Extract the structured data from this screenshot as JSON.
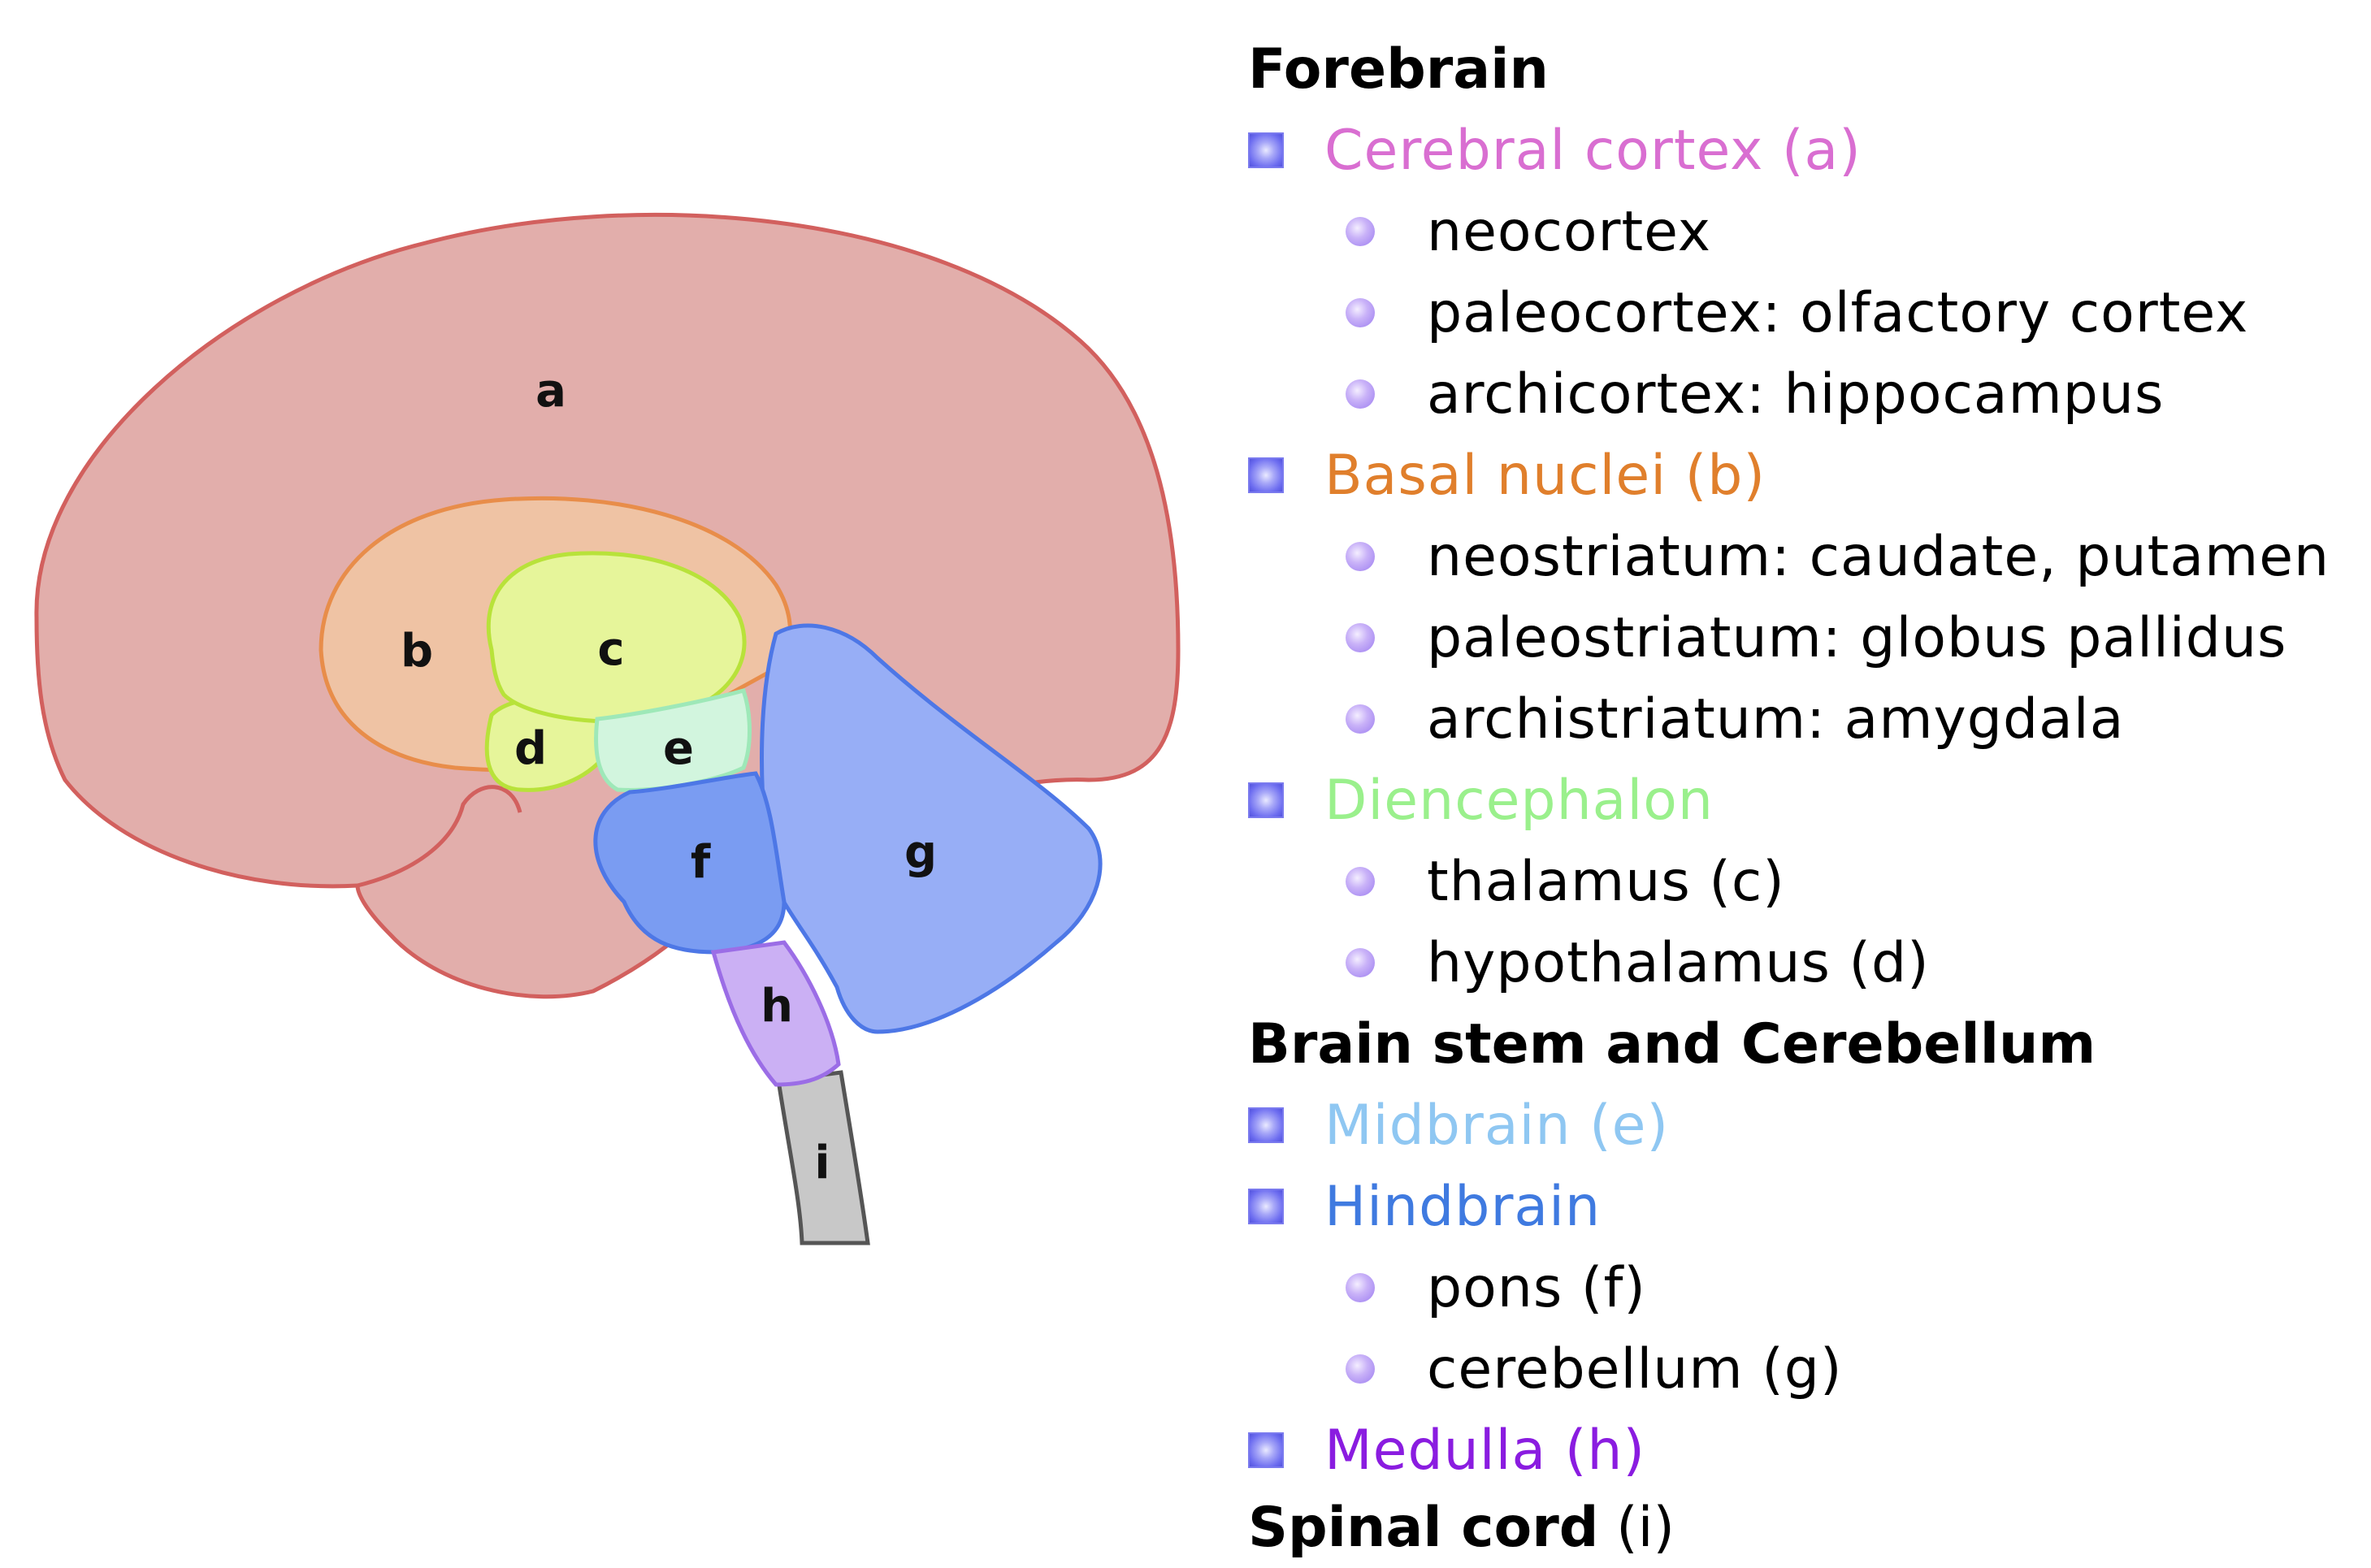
{
  "diagram": {
    "regions": [
      {
        "letter": "a",
        "color": "#e2aeab"
      },
      {
        "letter": "b",
        "color": "#efc3a4"
      },
      {
        "letter": "c",
        "color": "#e6f59a"
      },
      {
        "letter": "d",
        "color": "#e6f59a"
      },
      {
        "letter": "e",
        "color": "#d2f5de"
      },
      {
        "letter": "f",
        "color": "#7a9cf2"
      },
      {
        "letter": "g",
        "color": "#97aef6"
      },
      {
        "letter": "h",
        "color": "#cbb0f4"
      },
      {
        "letter": "i",
        "color": "#c8c8c8"
      }
    ]
  },
  "legend": {
    "forebrain": {
      "heading": "Forebrain"
    },
    "cerebral_cortex": {
      "label": "Cerebral cortex (a)",
      "color": "#d96ed1"
    },
    "cortex_items": [
      "neocortex",
      "paleocortex: olfactory cortex",
      "archicortex: hippocampus"
    ],
    "basal_nuclei": {
      "label": "Basal nuclei (b)",
      "color": "#e07f2c"
    },
    "basal_items": [
      "neostriatum: caudate, putamen",
      "paleostriatum: globus pallidus",
      "archistriatum: amygdala"
    ],
    "diencephalon": {
      "label": "Diencephalon",
      "color": "#9af08c"
    },
    "dien_items": [
      "thalamus (c)",
      "hypothalamus (d)"
    ],
    "brainstem": {
      "heading": "Brain stem and Cerebellum"
    },
    "midbrain": {
      "label": "Midbrain (e)",
      "color": "#8fc7f2"
    },
    "hindbrain": {
      "label": "Hindbrain",
      "color": "#3f7ae0"
    },
    "hind_items": [
      "pons (f)",
      "cerebellum (g)"
    ],
    "medulla": {
      "label": "Medulla (h)",
      "color": "#8a1ce0"
    },
    "spinal": {
      "heading": "Spinal cord",
      "suffix": " (i)"
    }
  }
}
